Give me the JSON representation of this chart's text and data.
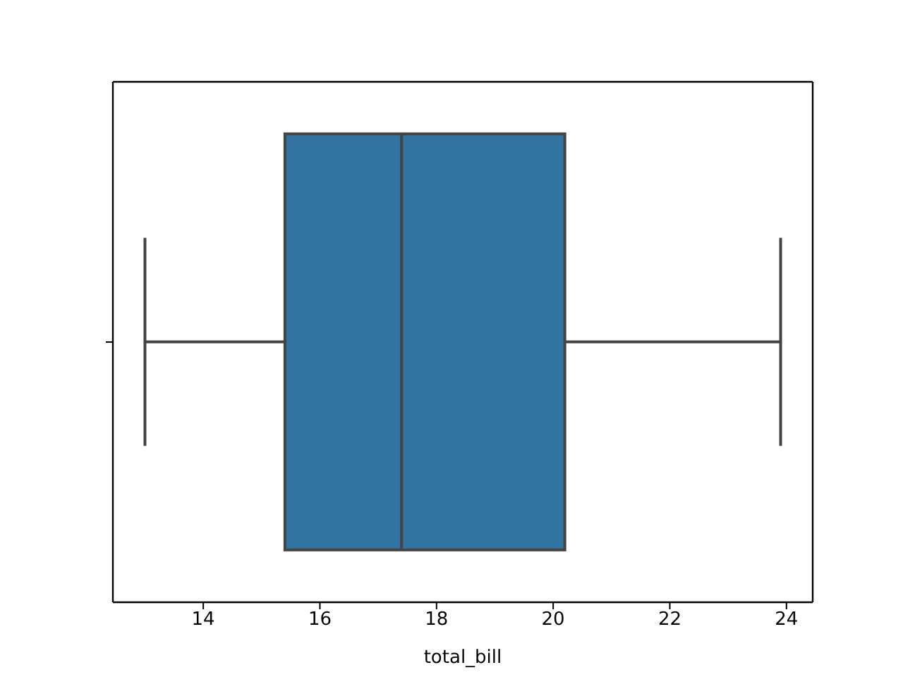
{
  "chart_data": {
    "type": "box",
    "xlabel": "total_bill",
    "orientation": "horizontal",
    "categories": [
      null
    ],
    "color": "#3274a1",
    "boxes": [
      {
        "low": 13.0,
        "q1": 15.4,
        "median": 17.4,
        "q3": 20.2,
        "high": 23.9
      }
    ],
    "xlim": [
      12.45,
      24.45
    ],
    "xticks": [
      14,
      16,
      18,
      20,
      22,
      24
    ]
  }
}
